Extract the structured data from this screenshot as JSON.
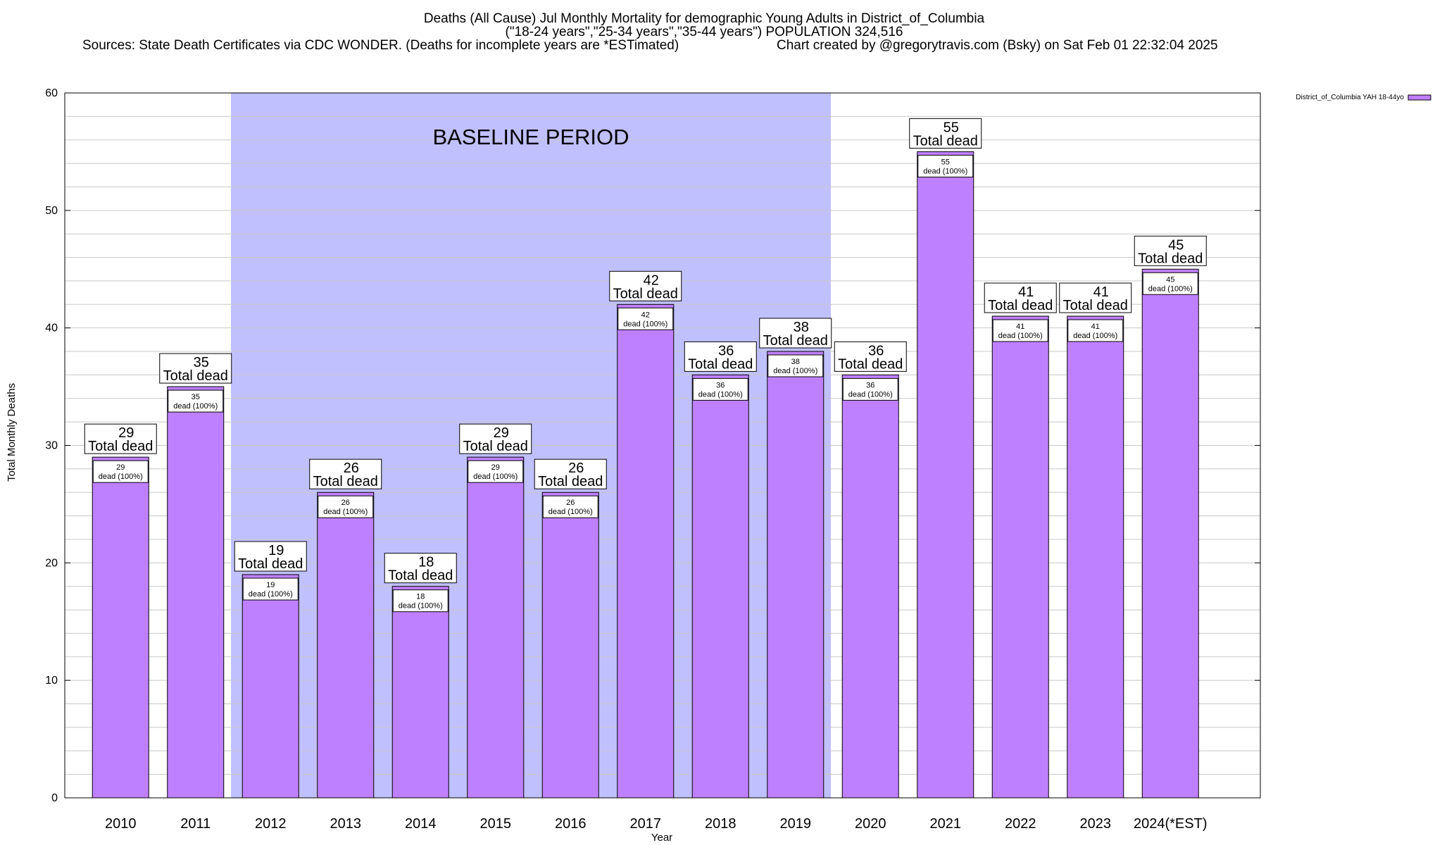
{
  "colors": {
    "bar": "#bf80ff",
    "bar_edge": "#000000",
    "baseline": "#c0c0ff",
    "grid": "#c8c8c8",
    "background": "#ffffff"
  },
  "chart_data": {
    "type": "bar",
    "title_lines": [
      "Deaths (All Cause) Jul Monthly Mortality for demographic Young Adults in District_of_Columbia",
      "(\"18-24 years\",\"25-34 years\",\"35-44 years\") POPULATION 324,516"
    ],
    "sources": "Sources: State Death Certificates via CDC WONDER. (Deaths for incomplete years are *ESTimated)",
    "credit": "Chart created by @gregorytravis.com (Bsky) on Sat Feb 01 22:32:04 2025",
    "xlabel": "Year",
    "ylabel": "Total Monthly Deaths",
    "ylim": [
      0,
      60
    ],
    "yticks": [
      0,
      10,
      20,
      30,
      40,
      50,
      60
    ],
    "categories": [
      "2010",
      "2011",
      "2012",
      "2013",
      "2014",
      "2015",
      "2016",
      "2017",
      "2018",
      "2019",
      "2020",
      "2021",
      "2022",
      "2023",
      "2024(*EST)"
    ],
    "series": [
      {
        "name": "District_of_Columbia YAH 18-44yo",
        "values": [
          29,
          35,
          19,
          26,
          18,
          29,
          26,
          42,
          36,
          38,
          36,
          55,
          41,
          41,
          45
        ]
      }
    ],
    "total_label": "Total dead",
    "inner_label": "dead (100%)",
    "baseline": {
      "label": "BASELINE PERIOD",
      "from": "2012",
      "to": "2019"
    },
    "grid": true,
    "legend_position": "top-right"
  }
}
